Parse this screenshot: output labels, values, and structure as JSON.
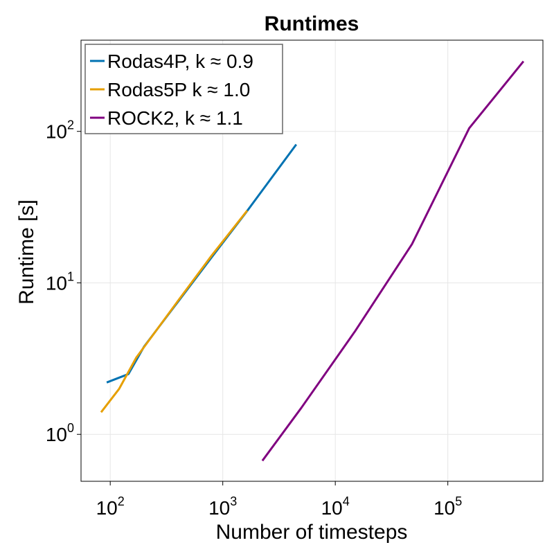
{
  "chart_data": {
    "type": "line",
    "title": "Runtimes",
    "xlabel": "Number of timesteps",
    "ylabel": "Runtime [s]",
    "xscale": "log",
    "yscale": "log",
    "xlim": [
      55,
      700000
    ],
    "ylim": [
      0.49,
      400
    ],
    "grid": true,
    "legend_position": "top-left",
    "x_ticks": [
      {
        "base": "10",
        "exp": "2",
        "value": 100
      },
      {
        "base": "10",
        "exp": "3",
        "value": 1000
      },
      {
        "base": "10",
        "exp": "4",
        "value": 10000
      },
      {
        "base": "10",
        "exp": "5",
        "value": 100000
      }
    ],
    "y_ticks": [
      {
        "base": "10",
        "exp": "0",
        "value": 1
      },
      {
        "base": "10",
        "exp": "1",
        "value": 10
      },
      {
        "base": "10",
        "exp": "2",
        "value": 100
      }
    ],
    "series": [
      {
        "name": "Rodas4P, k ≈ 0.9",
        "color": "#0072b2",
        "x": [
          93,
          145,
          200,
          400,
          800,
          1600,
          4500
        ],
        "y": [
          2.2,
          2.5,
          3.8,
          7.5,
          14.8,
          29,
          82
        ]
      },
      {
        "name": "Rodas5P k ≈ 1.0",
        "color": "#e69f00",
        "x": [
          83,
          120,
          170,
          400,
          800,
          1650
        ],
        "y": [
          1.4,
          2.0,
          3.2,
          7.6,
          15.2,
          30
        ]
      },
      {
        "name": "ROCK2, k ≈ 1.1",
        "color": "#800080",
        "x": [
          2250,
          5000,
          15000,
          48000,
          155000,
          470000
        ],
        "y": [
          0.67,
          1.5,
          4.8,
          18,
          105,
          290
        ]
      }
    ]
  }
}
